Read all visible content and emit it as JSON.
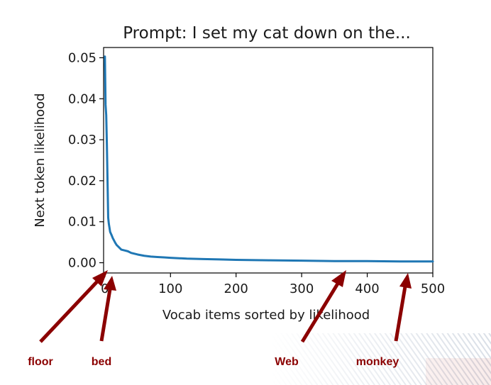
{
  "chart_data": {
    "type": "line",
    "title": "Prompt: I set my cat down on the...",
    "xlabel": "Vocab items sorted by likelihood",
    "ylabel": "Next token likelihood",
    "xlim": [
      -2,
      500
    ],
    "ylim": [
      -0.0025,
      0.0525
    ],
    "xticks": [
      0,
      100,
      200,
      300,
      400,
      500
    ],
    "yticks": [
      0.0,
      0.01,
      0.02,
      0.03,
      0.04,
      0.05
    ],
    "ytick_labels": [
      "0.00",
      "0.01",
      "0.02",
      "0.03",
      "0.04",
      "0.05"
    ],
    "grid": false,
    "series": [
      {
        "color": "#1f77b4",
        "x": [
          0,
          1,
          2,
          3,
          4,
          5,
          6,
          7,
          8,
          10,
          12,
          14,
          16,
          18,
          20,
          25,
          30,
          35,
          40,
          50,
          60,
          70,
          80,
          90,
          100,
          125,
          150,
          175,
          200,
          250,
          300,
          350,
          400,
          450,
          500
        ],
        "y": [
          0.0503,
          0.0385,
          0.036,
          0.029,
          0.02,
          0.011,
          0.0095,
          0.0085,
          0.0075,
          0.0068,
          0.006,
          0.0054,
          0.0048,
          0.0043,
          0.004,
          0.0032,
          0.003,
          0.0028,
          0.0024,
          0.002,
          0.0017,
          0.0015,
          0.0014,
          0.0013,
          0.0012,
          0.001,
          0.0009,
          0.0008,
          0.0007,
          0.0006,
          0.0005,
          0.0004,
          0.0004,
          0.0003,
          0.0003
        ]
      }
    ],
    "annotations": [
      {
        "label": "floor",
        "color": "#8b0000"
      },
      {
        "label": "bed",
        "color": "#8b0000"
      },
      {
        "label": "Web",
        "color": "#8b0000"
      },
      {
        "label": "monkey",
        "color": "#8b0000"
      }
    ]
  }
}
